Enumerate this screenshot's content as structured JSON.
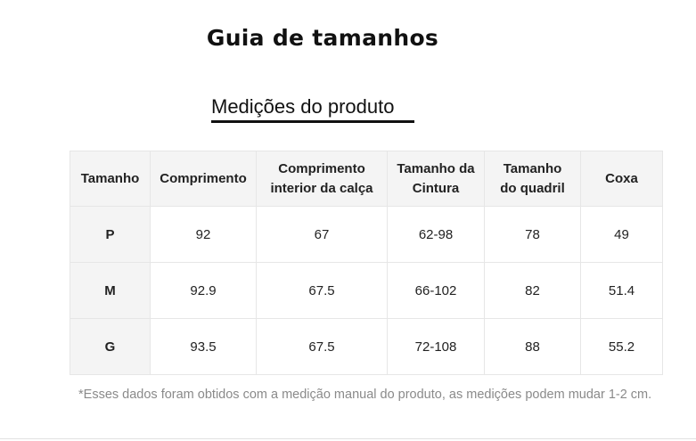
{
  "page": {
    "title": "Guia de tamanhos",
    "section_title": "Medições do produto",
    "footnote": "*Esses dados foram obtidos com a medição manual do produto, as medições podem mudar 1-2 cm."
  },
  "table": {
    "headers": [
      [
        "Tamanho"
      ],
      [
        "Comprimento"
      ],
      [
        "Comprimento",
        "interior da calça"
      ],
      [
        "Tamanho da",
        "Cintura"
      ],
      [
        "Tamanho",
        "do quadril"
      ],
      [
        "Coxa"
      ]
    ],
    "rows": [
      [
        "P",
        "92",
        "67",
        "62-98",
        "78",
        "49"
      ],
      [
        "M",
        "92.9",
        "67.5",
        "66-102",
        "82",
        "51.4"
      ],
      [
        "G",
        "93.5",
        "67.5",
        "72-108",
        "88",
        "55.2"
      ]
    ]
  }
}
